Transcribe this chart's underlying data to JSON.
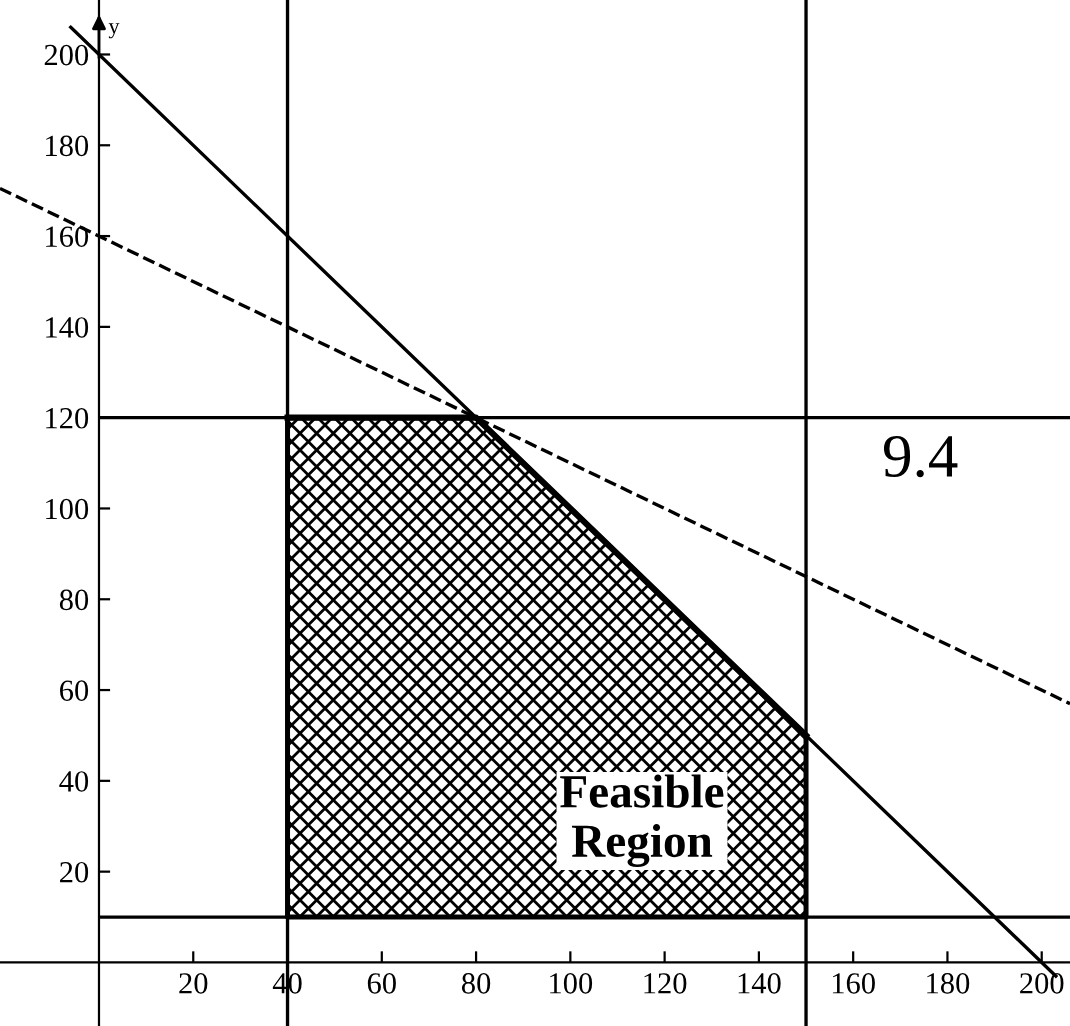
{
  "chart_data": {
    "type": "line",
    "ylabel": "y",
    "xlim": [
      -21,
      206
    ],
    "ylim": [
      -14,
      212
    ],
    "xticks": [
      20,
      40,
      60,
      80,
      100,
      120,
      140,
      160,
      180,
      200
    ],
    "yticks": [
      20,
      40,
      60,
      80,
      100,
      120,
      140,
      160,
      180,
      200
    ],
    "grid": false,
    "marker": "none",
    "series": [
      {
        "color": "#000000",
        "x": [
          -6,
          203
        ],
        "values": [
          206,
          -3
        ]
      },
      {
        "color": "#000000",
        "x": [
          -21,
          206
        ],
        "values": [
          170.5,
          57
        ],
        "line_style": "dashed"
      },
      {
        "color": "#000000",
        "x": [
          40,
          80,
          150
        ],
        "values": [
          120,
          120,
          50
        ],
        "lower": [
          10,
          10,
          10
        ],
        "upper": [
          120,
          120,
          50
        ]
      }
    ],
    "ref_lines": [
      {
        "axis": "x",
        "value": 40,
        "color": "#000000"
      },
      {
        "axis": "x",
        "value": 150,
        "color": "#000000"
      },
      {
        "axis": "y",
        "value": 120,
        "color": "#000000"
      },
      {
        "axis": "y",
        "value": 10,
        "color": "#000000"
      }
    ],
    "annotations": [
      "Feasible\nRegion",
      "9.4"
    ]
  }
}
